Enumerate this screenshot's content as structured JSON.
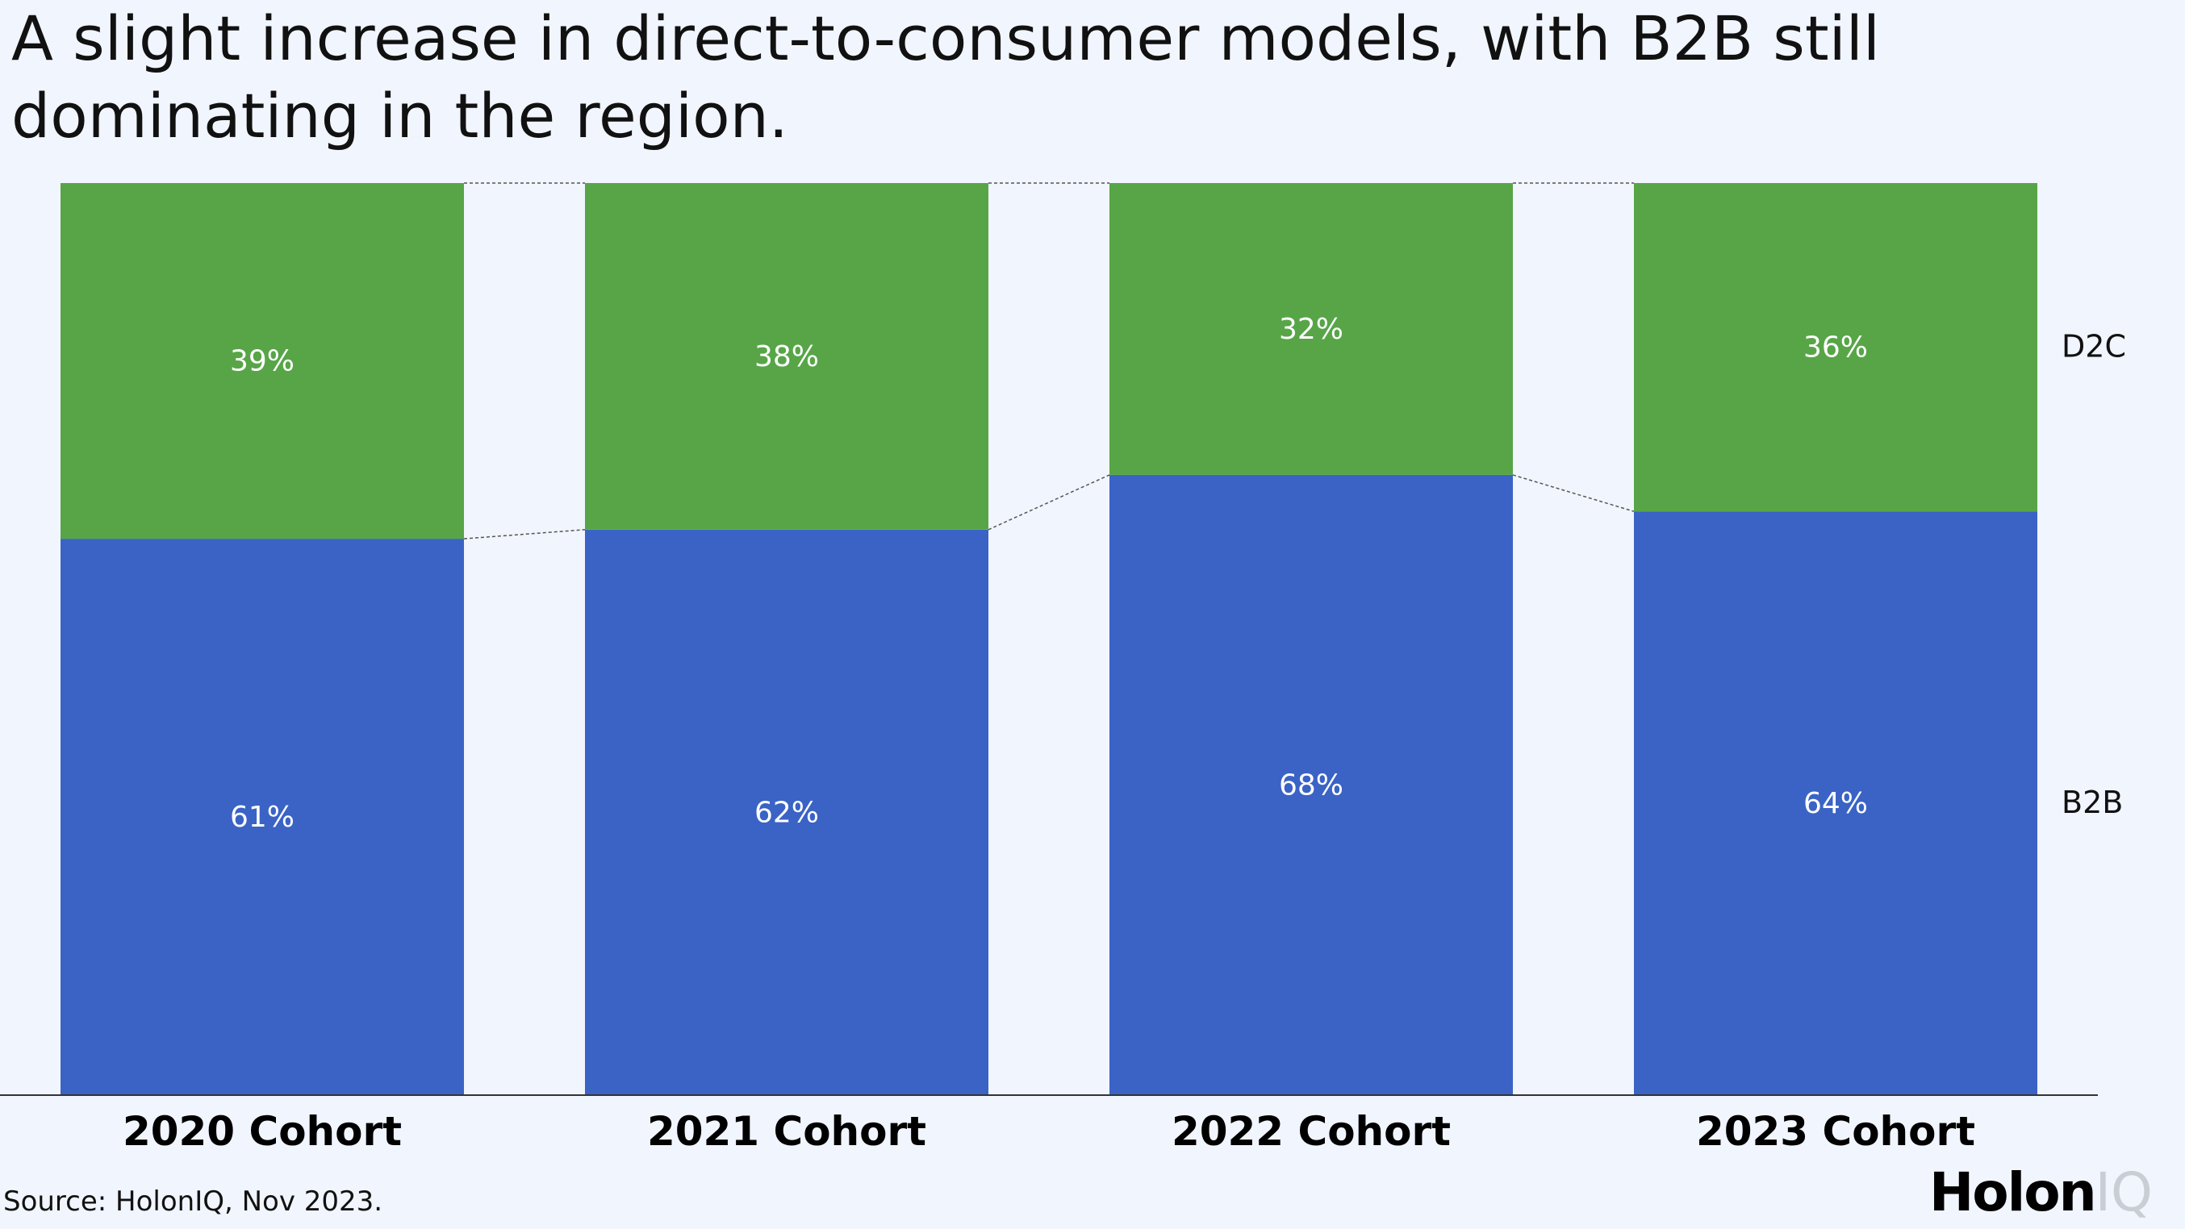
{
  "title": "A slight increase in direct-to-consumer models, with B2B still dominating in the region.",
  "source": "Source: HolonIQ, Nov 2023.",
  "logo": {
    "holon": "Holon",
    "iq": "IQ"
  },
  "colors": {
    "d2c": "#57a547",
    "b2b": "#3a63c5",
    "background": "#f1f5fd"
  },
  "chart_data": {
    "type": "bar",
    "stacked": true,
    "categories": [
      "2020 Cohort",
      "2021 Cohort",
      "2022 Cohort",
      "2023 Cohort"
    ],
    "series": [
      {
        "name": "B2B",
        "values": [
          61,
          62,
          68,
          64
        ],
        "labels": [
          "61%",
          "62%",
          "68%",
          "64%"
        ]
      },
      {
        "name": "D2C",
        "values": [
          39,
          38,
          32,
          36
        ],
        "labels": [
          "39%",
          "38%",
          "32%",
          "36%"
        ]
      }
    ],
    "ylim": [
      0,
      100
    ],
    "legend": "right",
    "grid": false
  }
}
